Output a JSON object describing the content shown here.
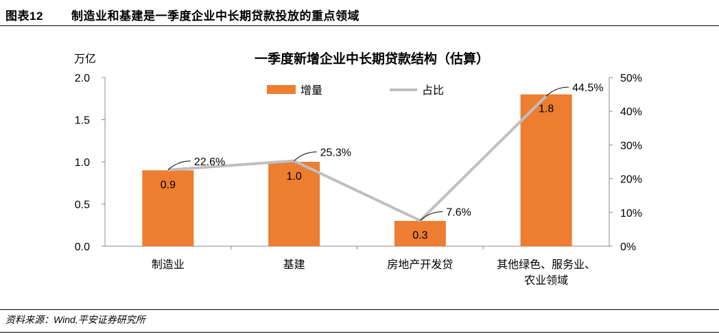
{
  "header": {
    "figure_number": "图表12",
    "figure_title": "制造业和基建是一季度企业中长期贷款投放的重点领域"
  },
  "source": "资料来源：Wind,平安证券研究所",
  "colors": {
    "bar": "#ED7D31",
    "line": "#BFBFBF",
    "axis": "#888888"
  },
  "chart_data": {
    "type": "bar",
    "title": "一季度新增企业中长期贷款结构（估算）",
    "y_unit_label": "万亿",
    "categories": [
      [
        "制造业"
      ],
      [
        "基建"
      ],
      [
        "房地产开发贷"
      ],
      [
        "其他绿色、服务业、",
        "农业领域"
      ]
    ],
    "series": [
      {
        "name": "增量",
        "type": "bar",
        "axis": "left",
        "values": [
          0.9,
          1.0,
          0.3,
          1.8
        ],
        "labels": [
          "0.9",
          "1.0",
          "0.3",
          "1.8"
        ]
      },
      {
        "name": "占比",
        "type": "line",
        "axis": "right",
        "values": [
          22.6,
          25.3,
          7.6,
          44.5
        ],
        "labels": [
          "22.6%",
          "25.3%",
          "7.6%",
          "44.5%"
        ]
      }
    ],
    "y_left": {
      "range": [
        0,
        2.0
      ],
      "ticks": [
        "0.0",
        "0.5",
        "1.0",
        "1.5",
        "2.0"
      ],
      "tick_values": [
        0,
        0.5,
        1.0,
        1.5,
        2.0
      ]
    },
    "y_right": {
      "range": [
        0,
        50
      ],
      "ticks": [
        "0%",
        "10%",
        "20%",
        "30%",
        "40%",
        "50%"
      ],
      "tick_values": [
        0,
        10,
        20,
        30,
        40,
        50
      ]
    },
    "legend_position": "top-center",
    "grid": false
  }
}
